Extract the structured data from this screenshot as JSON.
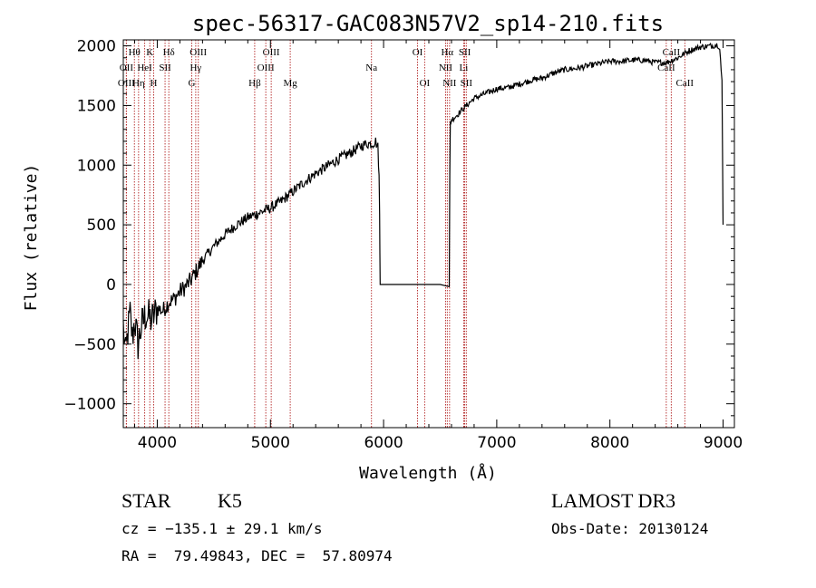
{
  "chart_data": {
    "type": "line",
    "title": "spec-56317-GAC083N57V2_sp14-210.fits",
    "xlabel": "Wavelength (Å)",
    "ylabel": "Flux (relative)",
    "xlim": [
      3700,
      9100
    ],
    "ylim": [
      -1200,
      2050
    ],
    "xticks": [
      4000,
      5000,
      6000,
      7000,
      8000,
      9000
    ],
    "xtick_labels": [
      "4000",
      "5000",
      "6000",
      "7000",
      "8000",
      "9000"
    ],
    "yticks": [
      -1000,
      -500,
      0,
      500,
      1000,
      1500,
      2000
    ],
    "ytick_labels": [
      "−1000",
      "−500",
      "0",
      "500",
      "1000",
      "1500",
      "2000"
    ],
    "grid": false,
    "series": [
      {
        "name": "spectrum",
        "color": "#000000",
        "x": [
          3700,
          3720,
          3740,
          3760,
          3780,
          3800,
          3830,
          3860,
          3900,
          3950,
          4000,
          4050,
          4100,
          4150,
          4200,
          4250,
          4300,
          4350,
          4400,
          4450,
          4500,
          4600,
          4700,
          4800,
          4900,
          5000,
          5100,
          5200,
          5300,
          5400,
          5500,
          5600,
          5700,
          5800,
          5850,
          5900,
          5930,
          5950,
          5960,
          5965,
          5970,
          6000,
          6100,
          6200,
          6300,
          6400,
          6500,
          6580,
          6585,
          6590,
          6600,
          6650,
          6700,
          6800,
          6900,
          7000,
          7100,
          7200,
          7300,
          7400,
          7500,
          7600,
          7700,
          7800,
          7900,
          8000,
          8100,
          8200,
          8300,
          8400,
          8500,
          8600,
          8700,
          8800,
          8900,
          8950,
          8970,
          8990,
          9000
        ],
        "y": [
          -350,
          -600,
          -400,
          -250,
          -450,
          -300,
          -500,
          -350,
          -250,
          -300,
          -200,
          -220,
          -150,
          -120,
          -60,
          -20,
          40,
          120,
          200,
          260,
          320,
          420,
          500,
          560,
          600,
          640,
          700,
          780,
          860,
          930,
          990,
          1050,
          1100,
          1160,
          1180,
          1180,
          1200,
          1150,
          900,
          600,
          0,
          0,
          0,
          0,
          0,
          0,
          0,
          0,
          900,
          1350,
          1380,
          1420,
          1470,
          1560,
          1600,
          1640,
          1650,
          1680,
          1710,
          1730,
          1770,
          1800,
          1810,
          1830,
          1850,
          1870,
          1870,
          1880,
          1880,
          1860,
          1860,
          1900,
          1960,
          1990,
          2000,
          2010,
          1990,
          1700,
          500
        ]
      }
    ],
    "line_color": "#b22222",
    "annotations": [
      {
        "label": "Hθ",
        "x": 3798,
        "row": 0
      },
      {
        "label": "K",
        "x": 3934,
        "row": 0
      },
      {
        "label": "Hδ",
        "x": 4102,
        "row": 0
      },
      {
        "label": "OIII",
        "x": 4363,
        "row": 0
      },
      {
        "label": "OIII",
        "x": 5007,
        "row": 0
      },
      {
        "label": "OI",
        "x": 6300,
        "row": 0
      },
      {
        "label": "Hα",
        "x": 6563,
        "row": 0
      },
      {
        "label": "SII",
        "x": 6717,
        "row": 0
      },
      {
        "label": "CaII",
        "x": 8542,
        "row": 0
      },
      {
        "label": "OII",
        "x": 3727,
        "row": 1
      },
      {
        "label": "HeI",
        "x": 3889,
        "row": 1
      },
      {
        "label": "SII",
        "x": 4069,
        "row": 1
      },
      {
        "label": "Hγ",
        "x": 4340,
        "row": 1
      },
      {
        "label": "OIII",
        "x": 4959,
        "row": 1
      },
      {
        "label": "Na",
        "x": 5893,
        "row": 1
      },
      {
        "label": "NII",
        "x": 6548,
        "row": 1
      },
      {
        "label": "Li",
        "x": 6708,
        "row": 1
      },
      {
        "label": "CaII",
        "x": 8498,
        "row": 1
      },
      {
        "label": "OIII",
        "x": 3727,
        "row": 2
      },
      {
        "label": "Hη",
        "x": 3835,
        "row": 2
      },
      {
        "label": "H",
        "x": 3968,
        "row": 2
      },
      {
        "label": "G",
        "x": 4305,
        "row": 2
      },
      {
        "label": "Hβ",
        "x": 4861,
        "row": 2
      },
      {
        "label": "Mg",
        "x": 5175,
        "row": 2
      },
      {
        "label": "OI",
        "x": 6363,
        "row": 2
      },
      {
        "label": "NII",
        "x": 6583,
        "row": 2
      },
      {
        "label": "SII",
        "x": 6731,
        "row": 2
      },
      {
        "label": "CaII",
        "x": 8662,
        "row": 2
      }
    ]
  },
  "info": {
    "object_class": "STAR",
    "subclass": "K5",
    "survey": "LAMOST DR3",
    "redshift": "cz = −135.1 ± 29.1 km/s",
    "obs_date": "Obs-Date: 20130124",
    "coords": "RA =  79.49843, DEC =  57.80974"
  }
}
